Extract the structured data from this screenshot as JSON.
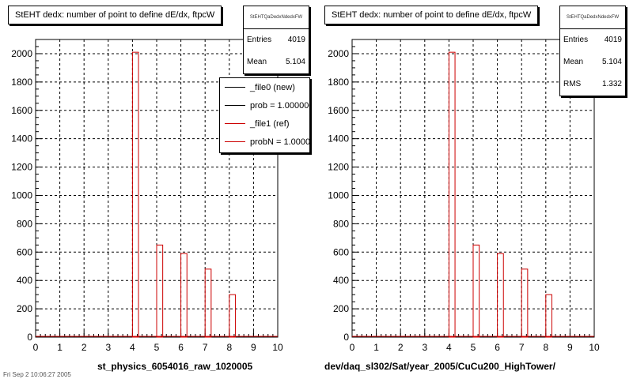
{
  "colors": {
    "histogram": "#cc0000",
    "axis": "#000000",
    "grid": "#000000"
  },
  "corner_text": "Fri Sep 2 10:06:27 2005",
  "panels": [
    {
      "title": "StEHT dedx: number of point to define dE/dx, ftpcW",
      "xtitle": "st_physics_6054016_raw_1020005",
      "stats": {
        "name": "StEHTQaDedxNdedxFW",
        "rows": [
          {
            "label": "Entries",
            "value": "4019"
          },
          {
            "label": "Mean",
            "value": "5.104"
          }
        ]
      },
      "legend": {
        "entries": [
          {
            "label": "_file0 (new)",
            "color": "#000000"
          },
          {
            "label": "prob = 1.000000",
            "color": "#000000"
          },
          {
            "label": "_file1 (ref)",
            "color": "#cc0000"
          },
          {
            "label": "probN = 1.000000",
            "color": "#cc0000"
          }
        ]
      }
    },
    {
      "title": "StEHT dedx: number of point to define dE/dx, ftpcW",
      "xtitle": "dev/daq_sl302/Sat/year_2005/CuCu200_HighTower/",
      "stats": {
        "name": "StEHTQaDedxNdedxFW",
        "rows": [
          {
            "label": "Entries",
            "value": "4019"
          },
          {
            "label": "Mean",
            "value": "5.104"
          },
          {
            "label": "RMS",
            "value": "1.332"
          }
        ]
      }
    }
  ],
  "chart_data": [
    {
      "type": "bar",
      "title": "StEHT dedx: number of point to define dE/dx, ftpcW",
      "xlabel": "st_physics_6054016_raw_1020005",
      "ylabel": "",
      "xlim": [
        0,
        10
      ],
      "ylim": [
        0,
        2100
      ],
      "x_ticks": [
        "0",
        "1",
        "2",
        "3",
        "4",
        "5",
        "6",
        "7",
        "8",
        "9",
        "10"
      ],
      "y_ticks": [
        "0",
        "200",
        "400",
        "600",
        "800",
        "1000",
        "1200",
        "1400",
        "1600",
        "1800",
        "2000"
      ],
      "grid": true,
      "legend_position": "top-right",
      "bin_width": 0.25,
      "series": [
        {
          "bins": [
            {
              "x": 4,
              "y": 2010
            },
            {
              "x": 5,
              "y": 650
            },
            {
              "x": 6,
              "y": 590
            },
            {
              "x": 7,
              "y": 480
            },
            {
              "x": 8,
              "y": 300
            }
          ]
        }
      ]
    },
    {
      "type": "bar",
      "title": "StEHT dedx: number of point to define dE/dx, ftpcW",
      "xlabel": "dev/daq_sl302/Sat/year_2005/CuCu200_HighTower/",
      "ylabel": "",
      "xlim": [
        0,
        10
      ],
      "ylim": [
        0,
        2100
      ],
      "x_ticks": [
        "0",
        "1",
        "2",
        "3",
        "4",
        "5",
        "6",
        "7",
        "8",
        "9",
        "10"
      ],
      "y_ticks": [
        "0",
        "200",
        "400",
        "600",
        "800",
        "1000",
        "1200",
        "1400",
        "1600",
        "1800",
        "2000"
      ],
      "grid": true,
      "bin_width": 0.25,
      "series": [
        {
          "bins": [
            {
              "x": 4,
              "y": 2010
            },
            {
              "x": 5,
              "y": 650
            },
            {
              "x": 6,
              "y": 590
            },
            {
              "x": 7,
              "y": 480
            },
            {
              "x": 8,
              "y": 300
            }
          ]
        }
      ]
    }
  ]
}
